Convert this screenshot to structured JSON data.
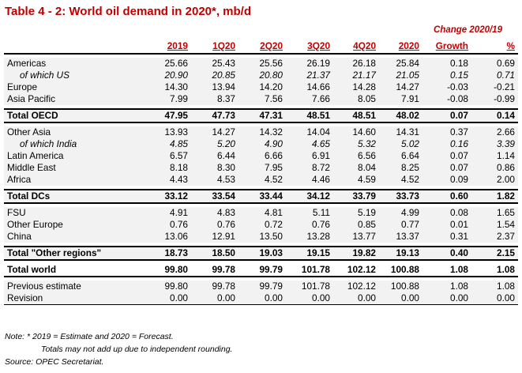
{
  "title": "Table 4 - 2: World oil demand in 2020*, mb/d",
  "change_header": "Change 2020/19",
  "columns": [
    "",
    "2019",
    "1Q20",
    "2Q20",
    "3Q20",
    "4Q20",
    "2020",
    "Growth",
    "%"
  ],
  "sections": [
    {
      "rows": [
        {
          "name": "Americas",
          "italic": false,
          "values": [
            "25.66",
            "25.43",
            "25.56",
            "26.19",
            "26.18",
            "25.84",
            "0.18",
            "0.69"
          ]
        },
        {
          "name": "of which US",
          "italic": true,
          "values": [
            "20.90",
            "20.85",
            "20.80",
            "21.37",
            "21.17",
            "21.05",
            "0.15",
            "0.71"
          ]
        },
        {
          "name": "Europe",
          "italic": false,
          "values": [
            "14.30",
            "13.94",
            "14.20",
            "14.66",
            "14.28",
            "14.27",
            "-0.03",
            "-0.21"
          ]
        },
        {
          "name": "Asia Pacific",
          "italic": false,
          "values": [
            "7.99",
            "8.37",
            "7.56",
            "7.66",
            "8.05",
            "7.91",
            "-0.08",
            "-0.99"
          ]
        }
      ],
      "total": {
        "name": "Total OECD",
        "values": [
          "47.95",
          "47.73",
          "47.31",
          "48.51",
          "48.51",
          "48.02",
          "0.07",
          "0.14"
        ]
      }
    },
    {
      "rows": [
        {
          "name": "Other Asia",
          "italic": false,
          "values": [
            "13.93",
            "14.27",
            "14.32",
            "14.04",
            "14.60",
            "14.31",
            "0.37",
            "2.66"
          ]
        },
        {
          "name": "of which India",
          "italic": true,
          "values": [
            "4.85",
            "5.20",
            "4.90",
            "4.65",
            "5.32",
            "5.02",
            "0.16",
            "3.39"
          ]
        },
        {
          "name": "Latin America",
          "italic": false,
          "values": [
            "6.57",
            "6.44",
            "6.66",
            "6.91",
            "6.56",
            "6.64",
            "0.07",
            "1.14"
          ]
        },
        {
          "name": "Middle East",
          "italic": false,
          "values": [
            "8.18",
            "8.30",
            "7.95",
            "8.72",
            "8.04",
            "8.25",
            "0.07",
            "0.86"
          ]
        },
        {
          "name": "Africa",
          "italic": false,
          "values": [
            "4.43",
            "4.53",
            "4.52",
            "4.46",
            "4.59",
            "4.52",
            "0.09",
            "2.00"
          ]
        }
      ],
      "total": {
        "name": "Total DCs",
        "values": [
          "33.12",
          "33.54",
          "33.44",
          "34.12",
          "33.79",
          "33.73",
          "0.60",
          "1.82"
        ]
      }
    },
    {
      "rows": [
        {
          "name": "FSU",
          "italic": false,
          "values": [
            "4.91",
            "4.83",
            "4.81",
            "5.11",
            "5.19",
            "4.99",
            "0.08",
            "1.65"
          ]
        },
        {
          "name": "Other Europe",
          "italic": false,
          "values": [
            "0.76",
            "0.76",
            "0.72",
            "0.76",
            "0.85",
            "0.77",
            "0.01",
            "1.54"
          ]
        },
        {
          "name": "China",
          "italic": false,
          "values": [
            "13.06",
            "12.91",
            "13.50",
            "13.28",
            "13.77",
            "13.37",
            "0.31",
            "2.37"
          ]
        }
      ],
      "total": {
        "name": "Total \"Other regions\"",
        "values": [
          "18.73",
          "18.50",
          "19.03",
          "19.15",
          "19.82",
          "19.13",
          "0.40",
          "2.15"
        ]
      }
    }
  ],
  "total_world": {
    "name": "Total world",
    "values": [
      "99.80",
      "99.78",
      "99.79",
      "101.78",
      "102.12",
      "100.88",
      "1.08",
      "1.08"
    ]
  },
  "footer_rows": [
    {
      "name": "Previous estimate",
      "values": [
        "99.80",
        "99.78",
        "99.79",
        "101.78",
        "102.12",
        "100.88",
        "1.08",
        "1.08"
      ]
    },
    {
      "name": "Revision",
      "values": [
        "0.00",
        "0.00",
        "0.00",
        "0.00",
        "0.00",
        "0.00",
        "0.00",
        "0.00"
      ]
    }
  ],
  "notes": {
    "line1": "Note: * 2019 = Estimate and 2020 = Forecast.",
    "line2": "Totals may not add up due to independent rounding.",
    "line3": "Source: OPEC Secretariat."
  }
}
